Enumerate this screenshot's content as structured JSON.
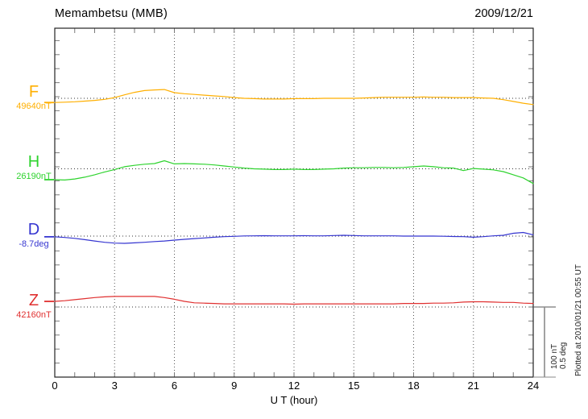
{
  "header": {
    "title": "Memambetsu (MMB)",
    "date": "2009/12/21"
  },
  "x_axis": {
    "label": "U T (hour)",
    "tick_labels": [
      "0",
      "3",
      "6",
      "9",
      "12",
      "15",
      "18",
      "21",
      "24"
    ],
    "range_hours": [
      0,
      24
    ],
    "minor_step_hours": 1
  },
  "scale_bar": {
    "nt_label": "100 nT",
    "deg_label": "0.5 deg"
  },
  "plot_note": "Plotted at 2010/01/21 00:55 UT",
  "chart_data": {
    "type": "line",
    "title": "Memambetsu (MMB) magnetogram, 2009/12/21",
    "xlabel": "U T (hour)",
    "xlim": [
      0,
      24
    ],
    "grid": {
      "x_major_hours": [
        0,
        3,
        6,
        9,
        12,
        15,
        18,
        21,
        24
      ],
      "x_minor_step_hours": 1,
      "style": "dotted"
    },
    "y_scale": {
      "nT_per_tick": 20,
      "deg_per_tick": 0.1,
      "reference_bar_nT": 100,
      "reference_bar_deg": 0.5
    },
    "x_hours": [
      0,
      0.5,
      1,
      1.5,
      2,
      2.5,
      3,
      3.5,
      4,
      4.5,
      5,
      5.5,
      6,
      6.5,
      7,
      7.5,
      8,
      8.5,
      9,
      9.5,
      10,
      10.5,
      11,
      11.5,
      12,
      12.5,
      13,
      13.5,
      14,
      14.5,
      15,
      15.5,
      16,
      16.5,
      17,
      17.5,
      18,
      18.5,
      19,
      19.5,
      20,
      20.5,
      21,
      21.5,
      22,
      22.5,
      23,
      23.5,
      24
    ],
    "series": [
      {
        "name": "F",
        "baseline_label": "49640nT",
        "unit": "nT",
        "color": "#FFAF00",
        "offsets": [
          -6,
          -5.5,
          -5,
          -4,
          -3,
          -1.5,
          1,
          5,
          8.5,
          11,
          12,
          12.5,
          8,
          6.5,
          5.5,
          4.5,
          3.5,
          2.5,
          1,
          0,
          -0.5,
          -1,
          -1,
          -1,
          -0.5,
          -0.5,
          -0.5,
          0,
          0,
          0,
          0,
          0.5,
          1,
          1.5,
          1.5,
          1.5,
          1.5,
          2,
          1.5,
          1.5,
          1,
          1,
          1,
          0.5,
          0,
          -2,
          -4.5,
          -7,
          -9
        ]
      },
      {
        "name": "H",
        "baseline_label": "26190nT",
        "unit": "nT",
        "color": "#2ED32E",
        "offsets": [
          -15.5,
          -16,
          -14.5,
          -12,
          -8.5,
          -4.5,
          -1,
          3,
          5,
          6.5,
          7.5,
          11.5,
          7,
          7.5,
          7,
          6.5,
          5.5,
          4,
          2.5,
          1,
          0,
          -0.5,
          -1,
          -1,
          -0.5,
          -1,
          -1,
          -0.5,
          0,
          1,
          1.5,
          1.5,
          2,
          2,
          1.5,
          2,
          3,
          4,
          3,
          1.5,
          1,
          -2.5,
          0.5,
          -0.5,
          -1.5,
          -4,
          -8.5,
          -13,
          -21
        ]
      },
      {
        "name": "D",
        "baseline_label": "-8.7deg",
        "unit": "deg",
        "color": "#3535D0",
        "offsets": [
          -0.005,
          -0.01,
          -0.016,
          -0.025,
          -0.035,
          -0.044,
          -0.05,
          -0.052,
          -0.048,
          -0.044,
          -0.039,
          -0.035,
          -0.029,
          -0.023,
          -0.018,
          -0.013,
          -0.008,
          -0.004,
          -0.002,
          0.001,
          0.002,
          0.003,
          0.002,
          0.002,
          0.002,
          0.003,
          0.002,
          0.002,
          0.004,
          0.006,
          0.004,
          0.002,
          0.002,
          0.002,
          0.002,
          0,
          0,
          0,
          0,
          -0.001,
          -0.003,
          -0.004,
          -0.008,
          -0.004,
          0.002,
          0.006,
          0.02,
          0.026,
          0.009
        ]
      },
      {
        "name": "Z",
        "baseline_label": "42160nT",
        "unit": "nT",
        "color": "#E03030",
        "offsets": [
          8,
          9,
          10.5,
          12,
          13.5,
          14.5,
          15,
          15,
          15,
          15,
          15,
          13.5,
          11,
          8,
          6,
          5.5,
          5,
          4.5,
          4.5,
          4.5,
          4.5,
          4.5,
          4.5,
          4.5,
          4,
          4.5,
          4.5,
          4.5,
          4.5,
          4.5,
          4.5,
          4.5,
          4.5,
          4.5,
          4.5,
          5,
          5,
          5,
          5.5,
          5.5,
          6,
          7,
          7.5,
          7.5,
          7,
          6.5,
          6.5,
          5.5,
          5
        ]
      }
    ]
  }
}
